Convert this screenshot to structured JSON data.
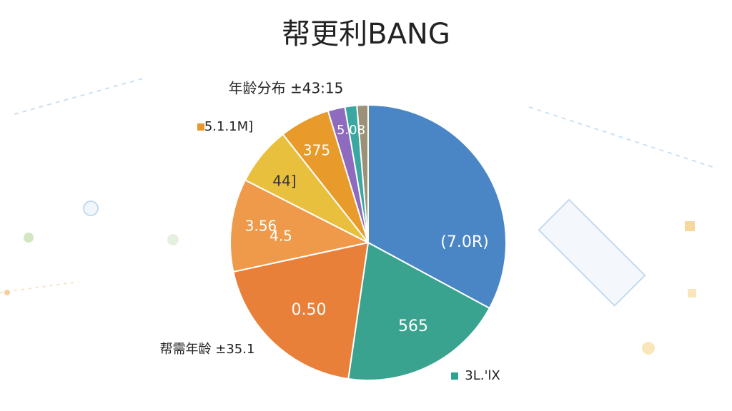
{
  "chart_data": {
    "type": "pie",
    "title": "帮更利BANG",
    "values": [
      32.9,
      19.4,
      19.3,
      10.9,
      6.9,
      5.9,
      2.0,
      1.4,
      1.3
    ],
    "colors": [
      "#4a86c5",
      "#3aa38f",
      "#e8803a",
      "#ee9a4a",
      "#e9bf3e",
      "#e89a2a",
      "#8e6bbf",
      "#3aa8a0",
      "#9a9178"
    ],
    "annotations": [
      {
        "text": "(7.0R)"
      },
      {
        "text": "565"
      },
      {
        "text": "0.50"
      },
      {
        "text": "3.56"
      },
      {
        "text": "4.5"
      },
      {
        "text": "44]"
      },
      {
        "text": "375"
      },
      {
        "text": "5.08"
      },
      {
        "text": "年龄分布 ±43:15"
      },
      {
        "text": "5.1.1M]",
        "color": "#e8962e"
      },
      {
        "text": "帮需年龄 ±35.1"
      },
      {
        "text": "3L.'lX",
        "color": "#2aa38f"
      }
    ]
  }
}
